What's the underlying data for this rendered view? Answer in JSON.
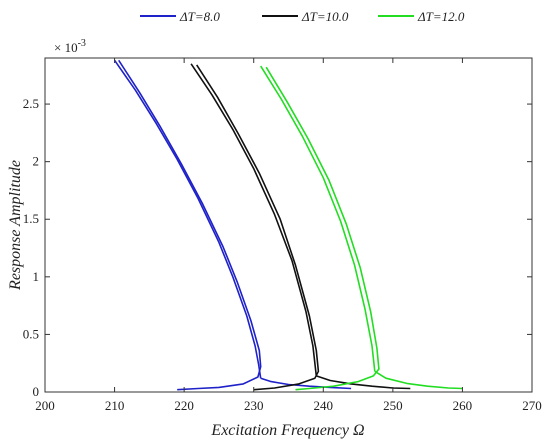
{
  "chart_data": {
    "type": "line",
    "title": "",
    "xlabel": "Excitation Frequency Ω",
    "ylabel": "Response Amplitude",
    "y_multiplier_label": "× 10",
    "y_multiplier_exponent": "-3",
    "xlim": [
      200,
      270
    ],
    "ylim": [
      0,
      2.9
    ],
    "x_ticks": [
      200,
      210,
      220,
      230,
      240,
      250,
      260,
      270
    ],
    "x_tick_labels": [
      "200",
      "210",
      "220",
      "230",
      "240",
      "250",
      "260",
      "270"
    ],
    "y_ticks": [
      0,
      0.5,
      1,
      1.5,
      2,
      2.5
    ],
    "y_tick_labels": [
      "0",
      "0.5",
      "1",
      "1.5",
      "2",
      "2.5"
    ],
    "grid": false,
    "legend_position": "top",
    "series": [
      {
        "name": "ΔT=8.0",
        "color": "#1f22c8",
        "upper": {
          "x": [
            210.0,
            213.0,
            216.0,
            219.0,
            222.0,
            225.0,
            227.0,
            229.0,
            230.2,
            230.7,
            231.0
          ],
          "y": [
            2.88,
            2.62,
            2.33,
            2.02,
            1.68,
            1.3,
            1.0,
            0.66,
            0.4,
            0.24,
            0.12
          ]
        },
        "middle": {
          "x": [
            210.6,
            213.6,
            216.6,
            219.6,
            222.6,
            225.6,
            227.6,
            229.6,
            230.8,
            231.0,
            230.6,
            228.5,
            225.0,
            222.0,
            219.0
          ],
          "y": [
            2.88,
            2.6,
            2.3,
            1.98,
            1.64,
            1.26,
            0.96,
            0.62,
            0.36,
            0.22,
            0.13,
            0.07,
            0.04,
            0.03,
            0.02
          ]
        },
        "lower": {
          "x": [
            231.0,
            232.5,
            235.0,
            238.0,
            241.0,
            244.0
          ],
          "y": [
            0.12,
            0.09,
            0.065,
            0.05,
            0.04,
            0.03
          ]
        }
      },
      {
        "name": "ΔT=10.0",
        "color": "#111111",
        "upper": {
          "x": [
            221.0,
            224.0,
            227.0,
            230.0,
            233.0,
            235.5,
            237.5,
            238.5,
            239.0
          ],
          "y": [
            2.85,
            2.58,
            2.28,
            1.94,
            1.54,
            1.14,
            0.7,
            0.4,
            0.14
          ]
        },
        "middle": {
          "x": [
            221.8,
            224.8,
            227.8,
            230.8,
            233.8,
            236.0,
            238.0,
            239.0,
            239.3,
            238.8,
            236.5,
            233.0,
            230.0
          ],
          "y": [
            2.84,
            2.56,
            2.24,
            1.9,
            1.5,
            1.1,
            0.66,
            0.36,
            0.18,
            0.12,
            0.07,
            0.035,
            0.02
          ]
        },
        "lower": {
          "x": [
            239.0,
            241.0,
            244.0,
            247.0,
            250.0,
            252.5
          ],
          "y": [
            0.14,
            0.1,
            0.07,
            0.05,
            0.035,
            0.03
          ]
        }
      },
      {
        "name": "ΔT=12.0",
        "color": "#22dd22",
        "upper": {
          "x": [
            231.0,
            234.0,
            237.0,
            240.0,
            242.5,
            244.5,
            246.0,
            247.0,
            247.4
          ],
          "y": [
            2.83,
            2.54,
            2.22,
            1.86,
            1.48,
            1.1,
            0.72,
            0.4,
            0.18
          ]
        },
        "middle": {
          "x": [
            231.8,
            234.8,
            237.8,
            240.8,
            243.3,
            245.3,
            246.8,
            247.7,
            248.0,
            247.2,
            245.0,
            241.5,
            238.0,
            236.0
          ],
          "y": [
            2.82,
            2.52,
            2.2,
            1.84,
            1.46,
            1.08,
            0.7,
            0.38,
            0.2,
            0.14,
            0.09,
            0.05,
            0.03,
            0.02
          ]
        },
        "lower": {
          "x": [
            247.4,
            249.0,
            252.0,
            255.0,
            258.0,
            260.0
          ],
          "y": [
            0.18,
            0.12,
            0.075,
            0.05,
            0.035,
            0.03
          ]
        }
      }
    ]
  }
}
